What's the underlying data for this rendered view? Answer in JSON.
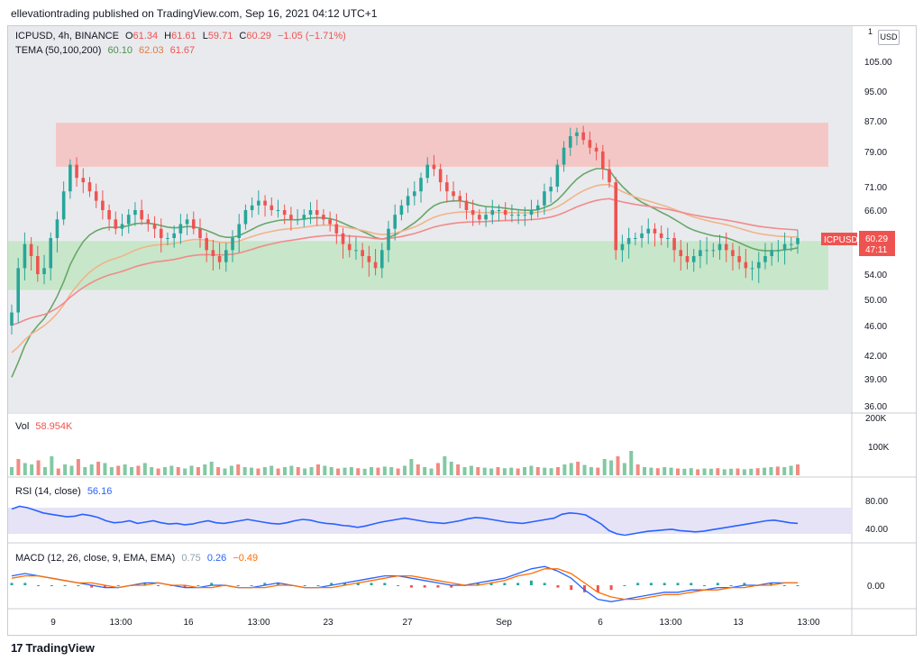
{
  "header": {
    "publisher_line": "ellevationtrading published on TradingView.com, Sep 16, 2021 04:12 UTC+1"
  },
  "legend_main": {
    "symbol": "ICPUSD, 4h, BINANCE",
    "o_label": "O",
    "o_value": "61.34",
    "h_label": "H",
    "h_value": "61.61",
    "l_label": "L",
    "l_value": "59.71",
    "c_label": "C",
    "c_value": "60.29",
    "change": "−1.05 (−1.71%)"
  },
  "legend_tema": {
    "label": "TEMA (50,100,200)",
    "v1": "60.10",
    "v2": "62.03",
    "v3": "61.67"
  },
  "legend_vol": {
    "label": "Vol",
    "value": "58.954K"
  },
  "legend_rsi": {
    "label": "RSI (14, close)",
    "value": "56.16"
  },
  "legend_macd": {
    "label": "MACD (12, 26, close, 9, EMA, EMA)",
    "v1": "0.75",
    "v2": "0.26",
    "v3": "−0.49"
  },
  "price_badge": {
    "symbol": "ICPUSD",
    "price": "60.29",
    "timer": "47:11"
  },
  "currency_button": "USD",
  "top_tick": "1",
  "brand": {
    "logo": "17",
    "name": "TradingView"
  },
  "colors": {
    "up": "#26a69a",
    "down": "#ef5350",
    "tema50": "#66a867",
    "tema100": "#f0b48a",
    "tema200": "#f28a8a",
    "rsi": "#2962ff",
    "macd": "#2962ff",
    "signal": "#ff6d00",
    "resistance_zone": "#f4c7c7",
    "support_zone": "#c8e6c9"
  },
  "chart_data": {
    "type": "candlestick",
    "price_axis_ticks": [
      "105.00",
      "95.00",
      "87.00",
      "79.00",
      "71.00",
      "66.00",
      "60.00",
      "54.00",
      "50.00",
      "46.00",
      "42.00",
      "39.00",
      "36.00"
    ],
    "price_axis_values": [
      105,
      95,
      87,
      79,
      71,
      66,
      60,
      54,
      50,
      46,
      42,
      39,
      36
    ],
    "x_axis_labels": [
      "9",
      "13:00",
      "16",
      "13:00",
      "23",
      "27",
      "Sep",
      "6",
      "13:00",
      "13",
      "13:00"
    ],
    "resistance_zone": [
      75.5,
      86.5
    ],
    "support_zone": [
      51.5,
      59.5
    ],
    "candle_count": 165,
    "close_path": [
      48,
      55,
      59,
      57,
      54,
      55,
      60,
      64,
      70,
      76,
      73,
      72,
      70,
      68,
      66,
      64,
      62,
      63,
      65,
      66,
      64,
      63,
      62,
      60,
      60,
      61,
      63,
      64,
      62,
      60,
      58,
      57,
      56,
      58,
      60,
      63,
      66,
      67,
      68,
      67,
      66,
      66,
      65,
      64,
      64,
      65,
      66,
      65,
      64,
      63,
      61,
      59,
      58,
      58,
      57,
      56,
      55,
      58,
      62,
      65,
      67,
      69,
      70,
      73,
      76,
      75,
      72,
      70,
      69,
      68,
      66,
      65,
      64,
      65,
      66,
      66,
      65,
      65,
      65,
      65,
      66,
      67,
      70,
      71,
      76,
      80,
      83,
      84,
      82,
      80,
      79,
      75,
      72,
      58,
      59,
      60,
      60,
      61,
      62,
      61,
      60,
      60,
      58,
      57,
      56,
      57,
      58,
      58,
      58,
      59,
      58,
      57,
      56,
      55,
      55,
      56,
      57,
      58,
      58,
      59,
      59,
      60
    ],
    "volume_scale": [
      "200K",
      "100K"
    ],
    "volume_max": 200000,
    "volume_values": [
      30,
      60,
      45,
      40,
      55,
      30,
      70,
      25,
      40,
      35,
      60,
      30,
      40,
      50,
      45,
      30,
      35,
      40,
      30,
      35,
      45,
      30,
      25,
      30,
      35,
      30,
      25,
      35,
      30,
      40,
      50,
      30,
      25,
      35,
      40,
      30,
      28,
      25,
      30,
      35,
      25,
      30,
      35,
      30,
      25,
      30,
      40,
      35,
      30,
      25,
      28,
      30,
      26,
      24,
      30,
      28,
      32,
      30,
      25,
      35,
      60,
      40,
      30,
      25,
      45,
      70,
      50,
      40,
      30,
      35,
      30,
      28,
      25,
      30,
      26,
      28,
      25,
      30,
      35,
      30,
      28,
      26,
      30,
      40,
      45,
      50,
      38,
      30,
      28,
      60,
      55,
      70,
      45,
      90,
      40,
      30,
      28,
      26,
      30,
      28,
      25,
      24,
      26,
      22,
      25,
      24,
      26,
      22,
      24,
      25,
      22,
      24,
      26,
      28,
      30,
      32,
      30,
      35,
      40
    ],
    "rsi_scale": [
      "80.00",
      "40.00"
    ],
    "rsi_values": [
      78,
      82,
      80,
      76,
      72,
      70,
      68,
      66,
      67,
      70,
      68,
      65,
      60,
      57,
      58,
      60,
      56,
      58,
      60,
      57,
      55,
      56,
      54,
      55,
      58,
      60,
      57,
      56,
      58,
      60,
      62,
      60,
      58,
      56,
      55,
      57,
      60,
      62,
      61,
      58,
      56,
      55,
      53,
      52,
      50,
      52,
      55,
      58,
      60,
      62,
      64,
      62,
      60,
      58,
      57,
      56,
      58,
      60,
      63,
      65,
      64,
      62,
      60,
      58,
      57,
      56,
      58,
      60,
      62,
      64,
      70,
      72,
      71,
      69,
      62,
      55,
      45,
      40,
      38,
      40,
      42,
      44,
      45,
      46,
      47,
      45,
      44,
      43,
      44,
      46,
      48,
      50,
      52,
      54,
      56,
      58,
      60,
      61,
      59,
      57,
      56
    ],
    "macd_scale": [
      "0.00"
    ],
    "macd_values": [
      4,
      5,
      4,
      3,
      2,
      1,
      0,
      -1,
      -1,
      0,
      1,
      1,
      0,
      -1,
      -1,
      0,
      0,
      -1,
      -1,
      0,
      1,
      0,
      -1,
      -1,
      0,
      1,
      2,
      3,
      4,
      4,
      3,
      2,
      1,
      0,
      0,
      1,
      2,
      3,
      5,
      7,
      8,
      6,
      3,
      -2,
      -6,
      -7,
      -6,
      -5,
      -4,
      -3,
      -3,
      -2,
      -2,
      -1,
      -1,
      0,
      0,
      1,
      1,
      1
    ],
    "signal_values": [
      3,
      4,
      4,
      3,
      2,
      1,
      1,
      0,
      -1,
      0,
      0,
      1,
      0,
      0,
      -1,
      -1,
      0,
      -1,
      -1,
      -1,
      0,
      0,
      -1,
      -1,
      -1,
      0,
      1,
      2,
      3,
      4,
      4,
      3,
      2,
      1,
      0,
      0,
      1,
      2,
      4,
      5,
      7,
      7,
      5,
      1,
      -3,
      -5,
      -6,
      -6,
      -5,
      -4,
      -4,
      -3,
      -2,
      -2,
      -1,
      -1,
      0,
      0,
      1,
      1
    ]
  }
}
